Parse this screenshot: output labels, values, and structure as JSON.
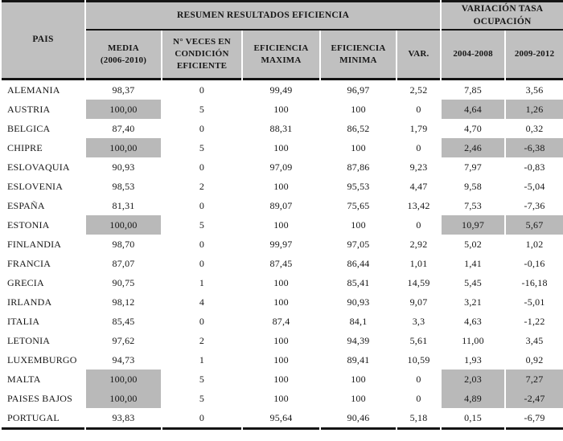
{
  "colors": {
    "header_bg": "#c0c0c0",
    "highlight_bg": "#b9b9b9",
    "line": "#141414",
    "text": "#161616"
  },
  "table": {
    "corner_header": "PAIS",
    "group_headers": [
      {
        "label": "RESUMEN RESULTADOS EFICIENCIA",
        "colspan": 5
      },
      {
        "label": "VARIACIÓN TASA\nOCUPACIÓN",
        "colspan": 2
      }
    ],
    "sub_headers": [
      "MEDIA\n(2006-2010)",
      "N° VECES EN\nCONDICIÓN\nEFICIENTE",
      "EFICIENCIA\nMAXIMA",
      "EFICIENCIA\nMINIMA",
      "VAR.",
      "2004-2008",
      "2009-2012"
    ],
    "highlight_value_columns": [
      0,
      5,
      6
    ],
    "rows": [
      {
        "pais": "ALEMANIA",
        "values": [
          "98,37",
          "0",
          "99,49",
          "96,97",
          "2,52",
          "7,85",
          "3,56"
        ],
        "highlight": false
      },
      {
        "pais": "AUSTRIA",
        "values": [
          "100,00",
          "5",
          "100",
          "100",
          "0",
          "4,64",
          "1,26"
        ],
        "highlight": true
      },
      {
        "pais": "BELGICA",
        "values": [
          "87,40",
          "0",
          "88,31",
          "86,52",
          "1,79",
          "4,70",
          "0,32"
        ],
        "highlight": false
      },
      {
        "pais": "CHIPRE",
        "values": [
          "100,00",
          "5",
          "100",
          "100",
          "0",
          "2,46",
          "-6,38"
        ],
        "highlight": true
      },
      {
        "pais": "ESLOVAQUIA",
        "values": [
          "90,93",
          "0",
          "97,09",
          "87,86",
          "9,23",
          "7,97",
          "-0,83"
        ],
        "highlight": false
      },
      {
        "pais": "ESLOVENIA",
        "values": [
          "98,53",
          "2",
          "100",
          "95,53",
          "4,47",
          "9,58",
          "-5,04"
        ],
        "highlight": false
      },
      {
        "pais": "ESPAÑA",
        "values": [
          "81,31",
          "0",
          "89,07",
          "75,65",
          "13,42",
          "7,53",
          "-7,36"
        ],
        "highlight": false
      },
      {
        "pais": "ESTONIA",
        "values": [
          "100,00",
          "5",
          "100",
          "100",
          "0",
          "10,97",
          "5,67"
        ],
        "highlight": true
      },
      {
        "pais": "FINLANDIA",
        "values": [
          "98,70",
          "0",
          "99,97",
          "97,05",
          "2,92",
          "5,02",
          "1,02"
        ],
        "highlight": false
      },
      {
        "pais": "FRANCIA",
        "values": [
          "87,07",
          "0",
          "87,45",
          "86,44",
          "1,01",
          "1,41",
          "-0,16"
        ],
        "highlight": false
      },
      {
        "pais": "GRECIA",
        "values": [
          "90,75",
          "1",
          "100",
          "85,41",
          "14,59",
          "5,45",
          "-16,18"
        ],
        "highlight": false
      },
      {
        "pais": "IRLANDA",
        "values": [
          "98,12",
          "4",
          "100",
          "90,93",
          "9,07",
          "3,21",
          "-5,01"
        ],
        "highlight": false
      },
      {
        "pais": "ITALIA",
        "values": [
          "85,45",
          "0",
          "87,4",
          "84,1",
          "3,3",
          "4,63",
          "-1,22"
        ],
        "highlight": false
      },
      {
        "pais": "LETONIA",
        "values": [
          "97,62",
          "2",
          "100",
          "94,39",
          "5,61",
          "11,00",
          "3,45"
        ],
        "highlight": false
      },
      {
        "pais": "LUXEMBURGO",
        "values": [
          "94,73",
          "1",
          "100",
          "89,41",
          "10,59",
          "1,93",
          "0,92"
        ],
        "highlight": false
      },
      {
        "pais": "MALTA",
        "values": [
          "100,00",
          "5",
          "100",
          "100",
          "0",
          "2,03",
          "7,27"
        ],
        "highlight": true
      },
      {
        "pais": "PAISES BAJOS",
        "values": [
          "100,00",
          "5",
          "100",
          "100",
          "0",
          "4,89",
          "-2,47"
        ],
        "highlight": true
      },
      {
        "pais": "PORTUGAL",
        "values": [
          "93,83",
          "0",
          "95,64",
          "90,46",
          "5,18",
          "0,15",
          "-6,79"
        ],
        "highlight": false
      }
    ]
  }
}
